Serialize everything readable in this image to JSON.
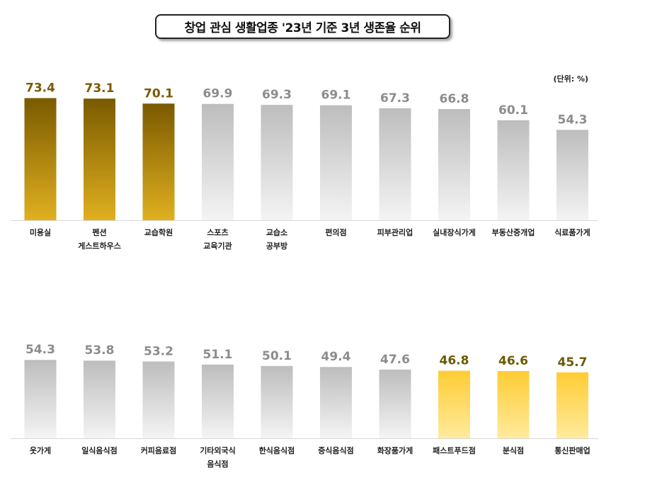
{
  "title": "창업 관심 생활업종 '23년 기준 3년 생존율 순위",
  "unit": "(단위: %)",
  "colors": {
    "gold_dark_top": "#7a5a00",
    "gold_dark_bottom": "#e0b020",
    "gray_top": "#bdbdbd",
    "gray_bottom": "#f4f4f4",
    "yellow_top": "#ffcc33",
    "yellow_bottom": "#ffeb9e",
    "label_gold": "#7a5a00",
    "label_gray": "#8c8c8c",
    "label_olive": "#6b5a00"
  },
  "chart_data": [
    {
      "type": "bar",
      "categories": [
        "미용실",
        "펜션\n게스트하우스",
        "교습학원",
        "스포츠\n교육기관",
        "교습소\n공부방",
        "편의점",
        "피부관리업",
        "실내장식가게",
        "부동산중개업",
        "식료품가게"
      ],
      "values": [
        73.4,
        73.1,
        70.1,
        69.9,
        69.3,
        69.1,
        67.3,
        66.8,
        60.1,
        54.3
      ],
      "styles": [
        "gold",
        "gold",
        "gold",
        "gray",
        "gray",
        "gray",
        "gray",
        "gray",
        "gray",
        "gray"
      ]
    },
    {
      "type": "bar",
      "categories": [
        "옷가게",
        "일식음식점",
        "커피음료점",
        "기타외국식\n음식점",
        "한식음식점",
        "중식음식점",
        "화장품가게",
        "패스트푸드점",
        "분식점",
        "통신판매업"
      ],
      "values": [
        54.3,
        53.8,
        53.2,
        51.1,
        50.1,
        49.4,
        47.6,
        46.8,
        46.6,
        45.7
      ],
      "styles": [
        "gray",
        "gray",
        "gray",
        "gray",
        "gray",
        "gray",
        "gray",
        "yellow",
        "yellow",
        "yellow"
      ]
    }
  ]
}
